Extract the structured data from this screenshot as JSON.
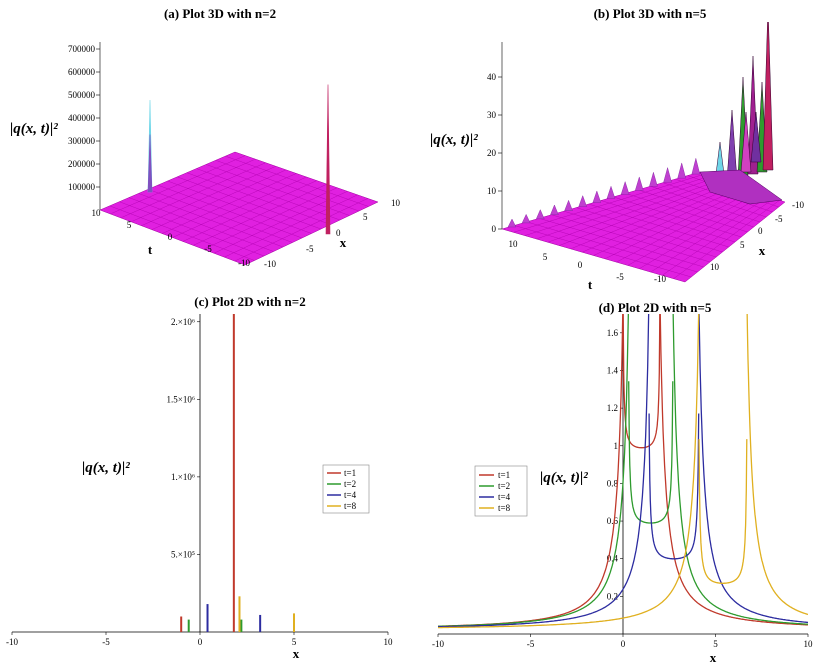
{
  "chart_data": [
    {
      "id": "a",
      "type": "surface3d",
      "title": "(a) Plot 3D with n=2",
      "zlabel": "|q(x, t)|²",
      "xlabel": "x",
      "tlabel": "t",
      "z_ticks": [
        "100000",
        "200000",
        "300000",
        "400000",
        "500000",
        "600000",
        "700000"
      ],
      "x_ticks": [
        "10",
        "5",
        "0",
        "-5",
        "-10"
      ],
      "t_ticks": [
        "10",
        "5",
        "0",
        "-5",
        "-10"
      ],
      "surface_color": "#e020e0",
      "peaks": [
        {
          "x": 5,
          "t": 10,
          "z": 400000,
          "color": "#6fd6e8"
        },
        {
          "x": 5,
          "t": 10,
          "z": 250000,
          "color": "#8050c0"
        },
        {
          "x": 2,
          "t": -2,
          "z": 650000,
          "color": "#c02060"
        }
      ]
    },
    {
      "id": "b",
      "type": "surface3d",
      "title": "(b) Plot 3D with n=5",
      "zlabel": "|q(x, t)|²",
      "xlabel": "x",
      "tlabel": "t",
      "z_ticks": [
        "0",
        "10",
        "20",
        "30",
        "40"
      ],
      "x_ticks": [
        "-10",
        "-5",
        "0",
        "5",
        "10"
      ],
      "t_ticks": [
        "10",
        "5",
        "0",
        "-5",
        "-10"
      ],
      "surface_color": "#e020e0"
    },
    {
      "id": "c",
      "type": "line",
      "title": "(c) Plot 2D with n=2",
      "xlabel": "x",
      "ylabel": "|q(x, t)|²",
      "xlim": [
        -10,
        10
      ],
      "ylim": [
        0,
        2050000
      ],
      "x_ticks": [
        -10,
        -5,
        0,
        5,
        10
      ],
      "y_ticks": [
        {
          "value": 500000,
          "label": "5.×10⁵"
        },
        {
          "value": 1000000,
          "label": "1.×10⁶"
        },
        {
          "value": 1500000,
          "label": "1.5×10⁶"
        },
        {
          "value": 2000000,
          "label": "2.×10⁶"
        }
      ],
      "legend": [
        "t=1",
        "t=2",
        "t=4",
        "t=8"
      ],
      "series": [
        {
          "name": "t=1",
          "color": "#c0392b",
          "spikes": [
            {
              "x": -1.0,
              "y": 100000
            },
            {
              "x": 1.8,
              "y": 2050000
            }
          ]
        },
        {
          "name": "t=2",
          "color": "#2e9b2e",
          "spikes": [
            {
              "x": -0.6,
              "y": 80000
            },
            {
              "x": 2.2,
              "y": 80000
            }
          ]
        },
        {
          "name": "t=4",
          "color": "#2c2ca0",
          "spikes": [
            {
              "x": 0.4,
              "y": 180000
            },
            {
              "x": 3.2,
              "y": 110000
            }
          ]
        },
        {
          "name": "t=8",
          "color": "#e0b020",
          "spikes": [
            {
              "x": 2.1,
              "y": 230000
            },
            {
              "x": 5.0,
              "y": 120000
            }
          ]
        }
      ]
    },
    {
      "id": "d",
      "type": "line",
      "title": "(d) Plot 2D with n=5",
      "xlabel": "x",
      "ylabel": "|q(x, t)|²",
      "xlim": [
        -10,
        10
      ],
      "ylim": [
        0,
        1.7
      ],
      "x_ticks": [
        -10,
        -5,
        0,
        5,
        10
      ],
      "y_ticks": [
        0.2,
        0.4,
        0.6,
        0.8,
        1,
        1.2,
        1.4,
        1.6
      ],
      "legend": [
        "t=1",
        "t=2",
        "t=4",
        "t=8"
      ],
      "series": [
        {
          "name": "t=1",
          "color": "#c0392b",
          "poles": [
            0.0,
            2.0
          ],
          "center": 1.0,
          "min": 0.95
        },
        {
          "name": "t=2",
          "color": "#2e9b2e",
          "poles": [
            0.3,
            2.7
          ],
          "center": 1.5,
          "min": 0.55
        },
        {
          "name": "t=4",
          "color": "#2c2ca0",
          "poles": [
            1.4,
            4.1
          ],
          "center": 2.75,
          "min": 0.36
        },
        {
          "name": "t=8",
          "color": "#e0b020",
          "poles": [
            4.1,
            6.7
          ],
          "center": 5.4,
          "min": 0.23
        }
      ]
    }
  ]
}
